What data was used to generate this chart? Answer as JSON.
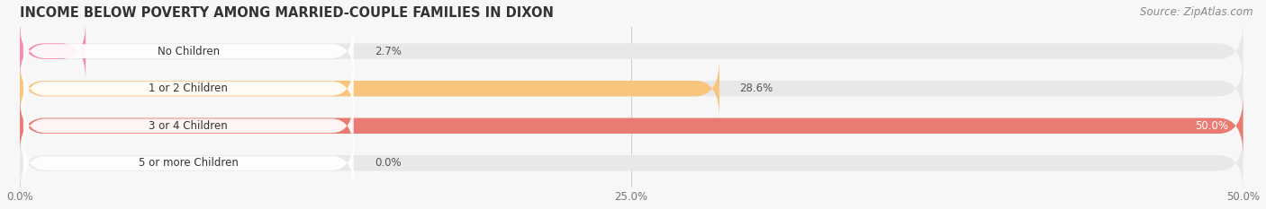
{
  "title": "INCOME BELOW POVERTY AMONG MARRIED-COUPLE FAMILIES IN DIXON",
  "source": "Source: ZipAtlas.com",
  "categories": [
    "No Children",
    "1 or 2 Children",
    "3 or 4 Children",
    "5 or more Children"
  ],
  "values": [
    2.7,
    28.6,
    50.0,
    0.0
  ],
  "bar_colors": [
    "#f48cae",
    "#f9c47e",
    "#e97b72",
    "#a8c8f0"
  ],
  "bar_background_color": "#e8e8e8",
  "label_pill_color": "#ffffff",
  "xlim": [
    0,
    50
  ],
  "xtick_labels": [
    "0.0%",
    "25.0%",
    "50.0%"
  ],
  "xtick_values": [
    0.0,
    25.0,
    50.0
  ],
  "title_fontsize": 10.5,
  "source_fontsize": 8.5,
  "label_fontsize": 8.5,
  "value_fontsize": 8.5,
  "background_color": "#f7f7f7",
  "bar_height": 0.42,
  "figsize": [
    14.06,
    2.33
  ],
  "dpi": 100
}
